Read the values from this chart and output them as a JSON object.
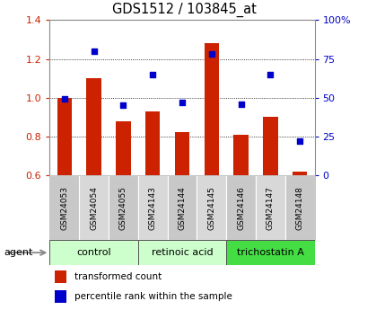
{
  "title": "GDS1512 / 103845_at",
  "categories": [
    "GSM24053",
    "GSM24054",
    "GSM24055",
    "GSM24143",
    "GSM24144",
    "GSM24145",
    "GSM24146",
    "GSM24147",
    "GSM24148"
  ],
  "bar_values": [
    1.0,
    1.1,
    0.88,
    0.93,
    0.82,
    1.28,
    0.81,
    0.9,
    0.62
  ],
  "dot_values_pct": [
    49,
    80,
    45,
    65,
    47,
    78,
    46,
    65,
    22
  ],
  "bar_color": "#cc2200",
  "dot_color": "#0000cc",
  "ylim_left": [
    0.6,
    1.4
  ],
  "ylim_right": [
    0,
    100
  ],
  "yticks_left": [
    0.6,
    0.8,
    1.0,
    1.2,
    1.4
  ],
  "yticks_right": [
    0,
    25,
    50,
    75,
    100
  ],
  "ytick_labels_right": [
    "0",
    "25",
    "50",
    "75",
    "100%"
  ],
  "group_info": [
    [
      0,
      2,
      "control",
      "#ccffcc"
    ],
    [
      3,
      5,
      "retinoic acid",
      "#ccffcc"
    ],
    [
      6,
      8,
      "trichostatin A",
      "#44dd44"
    ]
  ],
  "agent_label": "agent",
  "legend_bar": "transformed count",
  "legend_dot": "percentile rank within the sample",
  "tick_color_left": "#cc2200",
  "tick_color_right": "#0000cc",
  "bar_bottom": 0.6,
  "grid_dotted_at": [
    0.8,
    1.0,
    1.2
  ],
  "cat_colors": [
    "#c8c8c8",
    "#d8d8d8",
    "#c8c8c8",
    "#d8d8d8",
    "#c8c8c8",
    "#d8d8d8",
    "#c8c8c8",
    "#d8d8d8",
    "#c8c8c8"
  ]
}
